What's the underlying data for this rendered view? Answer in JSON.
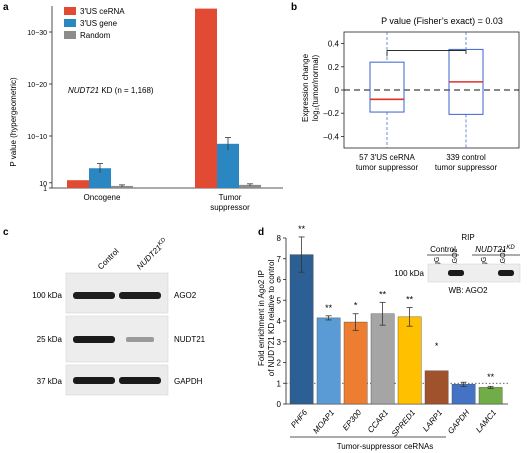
{
  "panels": {
    "a": "a",
    "b": "b",
    "c": "c",
    "d": "d"
  },
  "chart_data": [
    {
      "panel": "a",
      "type": "bar",
      "ylabel": "P value (hypergeometric)",
      "yscale": "log10-of-1/P",
      "yticks": [
        "1",
        "10",
        "10−10",
        "10−20",
        "10−30"
      ],
      "ylim": [
        0,
        35
      ],
      "categories": [
        "Oncogene",
        "Tumor suppressor"
      ],
      "category_lines": [
        [
          "Oncogene"
        ],
        [
          "Tumor",
          "suppressor"
        ]
      ],
      "series": [
        {
          "name": "3′US ceRNA",
          "color": "#e34a33",
          "values": [
            1.5,
            34.5
          ],
          "errors": [
            0,
            0
          ]
        },
        {
          "name": "3′US gene",
          "color": "#2b87c2",
          "values": [
            3.8,
            8.5
          ],
          "errors": [
            0.9,
            1.2
          ]
        },
        {
          "name": "Random",
          "color": "#8c8c8c",
          "values": [
            0.4,
            0.6
          ],
          "errors": [
            0.2,
            0.2
          ]
        }
      ],
      "annotation_gene": "NUDT21",
      "annotation_rest": " KD (n = 1,168)"
    },
    {
      "panel": "b",
      "type": "box",
      "title": "P value (Fisher’s exact) = 0.03",
      "ylabel_lines": [
        "Expression change",
        "log₂(tumor/normal)"
      ],
      "ylim": [
        -0.5,
        0.5
      ],
      "yticks": [
        "0.4",
        "0.2",
        "0",
        "–0.2",
        "–0.4"
      ],
      "ytick_values": [
        0.4,
        0.2,
        0,
        -0.2,
        -0.4
      ],
      "boxes": [
        {
          "label_lines": [
            "57 3′US ceRNA",
            "tumor suppressor"
          ],
          "q1": -0.19,
          "median": -0.08,
          "q3": 0.24,
          "whisker_low": -0.5,
          "whisker_high": 0.5
        },
        {
          "label_lines": [
            "339 control",
            "tumor suppressor"
          ],
          "q1": -0.21,
          "median": 0.07,
          "q3": 0.35,
          "whisker_low": -0.5,
          "whisker_high": 0.5
        }
      ]
    },
    {
      "panel": "d",
      "type": "bar",
      "ylabel_lines": [
        "Fold enrichment in Ago2 IP",
        "of NUDT21 KD relative to control"
      ],
      "ylim": [
        0,
        8
      ],
      "yticks": [
        "0",
        "1",
        "2",
        "3",
        "4",
        "5",
        "6",
        "7",
        "8"
      ],
      "ytick_values": [
        0,
        1,
        2,
        3,
        4,
        5,
        6,
        7,
        8
      ],
      "categories": [
        "PHF6",
        "MOAP1",
        "EP300",
        "CCAR1",
        "SPRED1",
        "LARP1",
        "GAPDH",
        "LAMC1"
      ],
      "values": [
        7.2,
        4.15,
        3.95,
        4.35,
        4.2,
        1.6,
        0.95,
        0.8
      ],
      "errors": [
        0.85,
        0.1,
        0.4,
        0.55,
        0.45,
        0.0,
        0.1,
        0.05
      ],
      "significance": [
        "**",
        "**",
        "*",
        "**",
        "**",
        "*",
        "",
        "**"
      ],
      "colors": [
        "#2c5f94",
        "#5b9bd5",
        "#ed7d31",
        "#a5a5a5",
        "#ffc000",
        "#a0522d",
        "#4472c4",
        "#70ad47"
      ],
      "xlabel": "Tumor-suppressor ceRNAs",
      "dotted_reference": 1
    }
  ],
  "blot_c": {
    "lane_labels": [
      "Control",
      "NUDT21"
    ],
    "lane2_sup": "KD",
    "rows": [
      {
        "size": "100 kDa",
        "protein": "AGO2"
      },
      {
        "size": "25 kDa",
        "protein": "NUDT21"
      },
      {
        "size": "37 kDa",
        "protein": "GAPDH"
      }
    ]
  },
  "blot_d": {
    "title": "RIP",
    "group_control": "Control",
    "group_kd": "NUDT21",
    "group_kd_sup": "KD",
    "lanes": [
      "IgG",
      "AGO2",
      "IgG",
      "AGO2"
    ],
    "size": "100 kDa",
    "caption": "WB: AGO2"
  }
}
